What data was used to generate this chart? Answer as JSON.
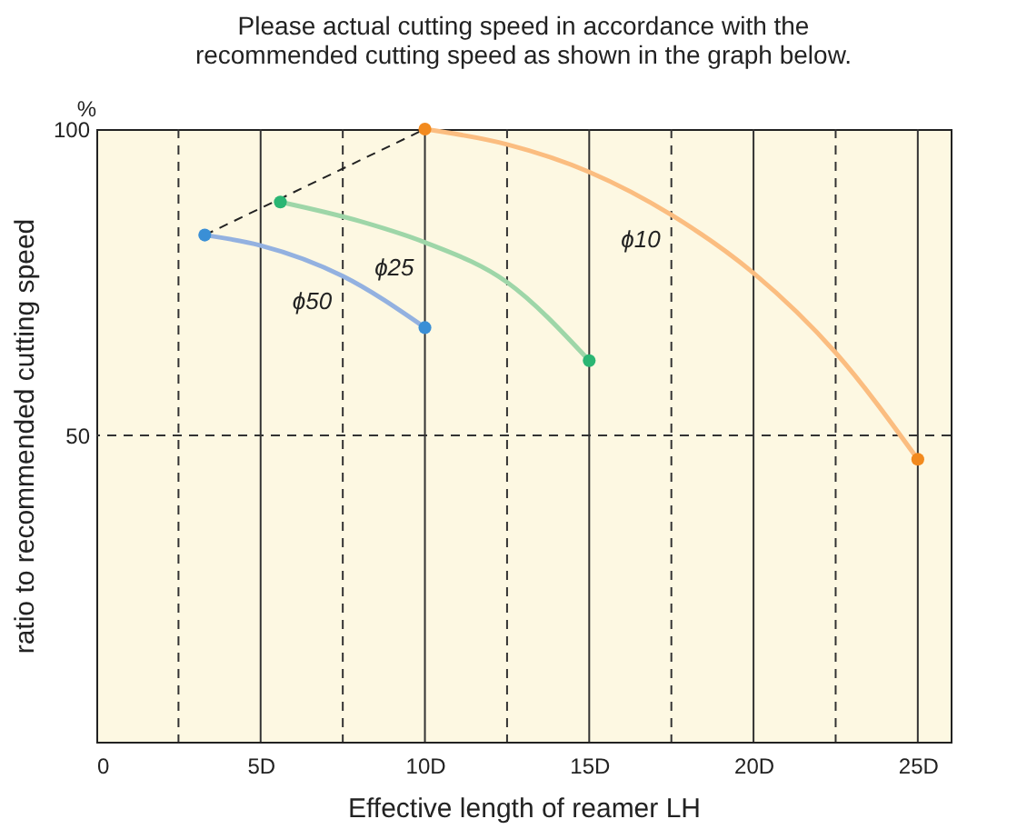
{
  "chart_data": {
    "type": "line",
    "title": "Please actual cutting speed in accordance with the\nrecommended cutting speed as shown in the graph below.",
    "xlabel": "Effective length of reamer LH",
    "ylabel": "ratio to recommended cutting speed",
    "annotations": [
      "%"
    ],
    "xlim": [
      0,
      26
    ],
    "ylim": [
      0,
      100
    ],
    "xticks": [
      0,
      {
        "value": 2.5,
        "label": null
      },
      {
        "value": 5,
        "label": "5D"
      },
      {
        "value": 7.5,
        "label": null
      },
      {
        "value": 10,
        "label": "10D"
      },
      {
        "value": 12.5,
        "label": null
      },
      {
        "value": 15,
        "label": "15D"
      },
      {
        "value": 17.5,
        "label": null
      },
      {
        "value": 20,
        "label": "20D"
      },
      {
        "value": 22.5,
        "label": null
      },
      {
        "value": 25,
        "label": "25D"
      }
    ],
    "yticks": [
      50,
      100
    ],
    "grid": true,
    "marker": "none",
    "series": [
      {
        "name": "ϕ10",
        "color": "#fbbd80",
        "x": [
          10,
          12.5,
          15,
          17.5,
          20,
          22.5,
          25
        ],
        "values": [
          100,
          97.5,
          93,
          86,
          76.5,
          63.5,
          46.1
        ]
      },
      {
        "name": "ϕ25",
        "color": "#9ed6a8",
        "x": [
          5.6,
          8,
          10,
          12.5,
          15
        ],
        "values": [
          88.1,
          85,
          81.5,
          75,
          62.2
        ]
      },
      {
        "name": "ϕ50",
        "color": "#93b1e0",
        "x": [
          3.3,
          5,
          7.5,
          10
        ],
        "values": [
          82.7,
          81,
          76,
          67.6
        ]
      },
      {
        "type": "line",
        "line_style": "dashed",
        "color": "#222222",
        "x": [
          3.3,
          10
        ],
        "values": [
          82.7,
          100
        ]
      },
      {
        "type": "scatter",
        "marker": "circle",
        "color": "#f28a1e",
        "x": [
          10,
          25
        ],
        "values": [
          100,
          46.1
        ]
      },
      {
        "type": "scatter",
        "marker": "circle",
        "color": "#2bb673",
        "x": [
          5.6,
          15
        ],
        "values": [
          88.1,
          62.2
        ]
      },
      {
        "type": "scatter",
        "marker": "circle",
        "color": "#3a8fd6",
        "x": [
          3.3,
          10
        ],
        "values": [
          82.7,
          67.6
        ]
      }
    ]
  }
}
